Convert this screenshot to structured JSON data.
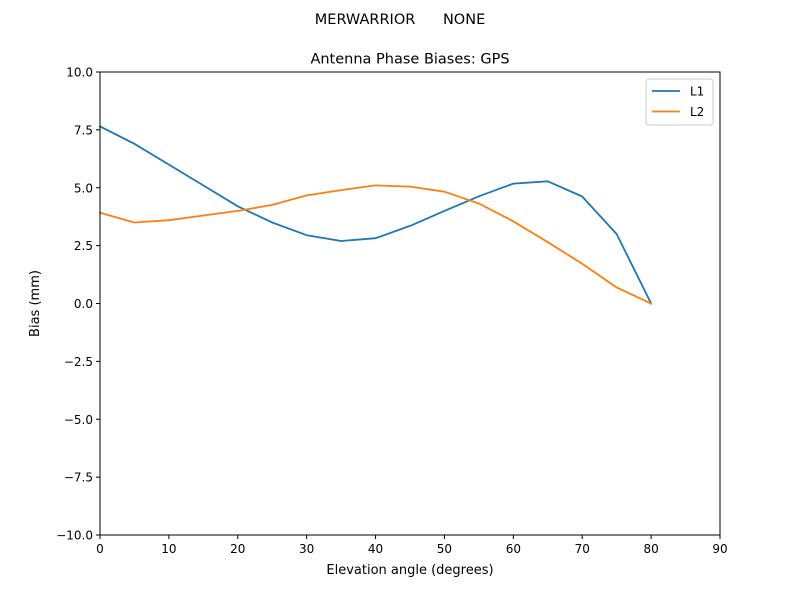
{
  "suptitle": "MERWARRIOR      NONE",
  "chart_data": {
    "type": "line",
    "title": "Antenna Phase Biases: GPS",
    "xlabel": "Elevation angle (degrees)",
    "ylabel": "Bias (mm)",
    "xlim": [
      0,
      90
    ],
    "ylim": [
      -10,
      10
    ],
    "xticks": [
      0,
      10,
      20,
      30,
      40,
      50,
      60,
      70,
      80,
      90
    ],
    "yticks": [
      -10.0,
      -7.5,
      -5.0,
      -2.5,
      0.0,
      2.5,
      5.0,
      7.5,
      10.0
    ],
    "xtick_labels": [
      "0",
      "10",
      "20",
      "30",
      "40",
      "50",
      "60",
      "70",
      "80",
      "90"
    ],
    "ytick_labels": [
      "−10.0",
      "−7.5",
      "−5.0",
      "−2.5",
      "0.0",
      "2.5",
      "5.0",
      "7.5",
      "10.0"
    ],
    "grid": false,
    "legend": "top-right",
    "x": [
      0,
      5,
      10,
      15,
      20,
      25,
      30,
      35,
      40,
      45,
      50,
      55,
      60,
      65,
      70,
      75,
      80
    ],
    "series": [
      {
        "name": "L1",
        "color": "#1f77b4",
        "values": [
          7.65,
          6.9,
          6.0,
          5.1,
          4.2,
          3.5,
          2.95,
          2.7,
          2.82,
          3.35,
          4.0,
          4.63,
          5.18,
          5.28,
          4.62,
          3.0,
          0.0
        ]
      },
      {
        "name": "L2",
        "color": "#ff7f0e",
        "values": [
          3.92,
          3.5,
          3.6,
          3.8,
          4.0,
          4.26,
          4.67,
          4.9,
          5.1,
          5.05,
          4.83,
          4.32,
          3.55,
          2.65,
          1.72,
          0.69,
          0.0
        ]
      }
    ]
  }
}
